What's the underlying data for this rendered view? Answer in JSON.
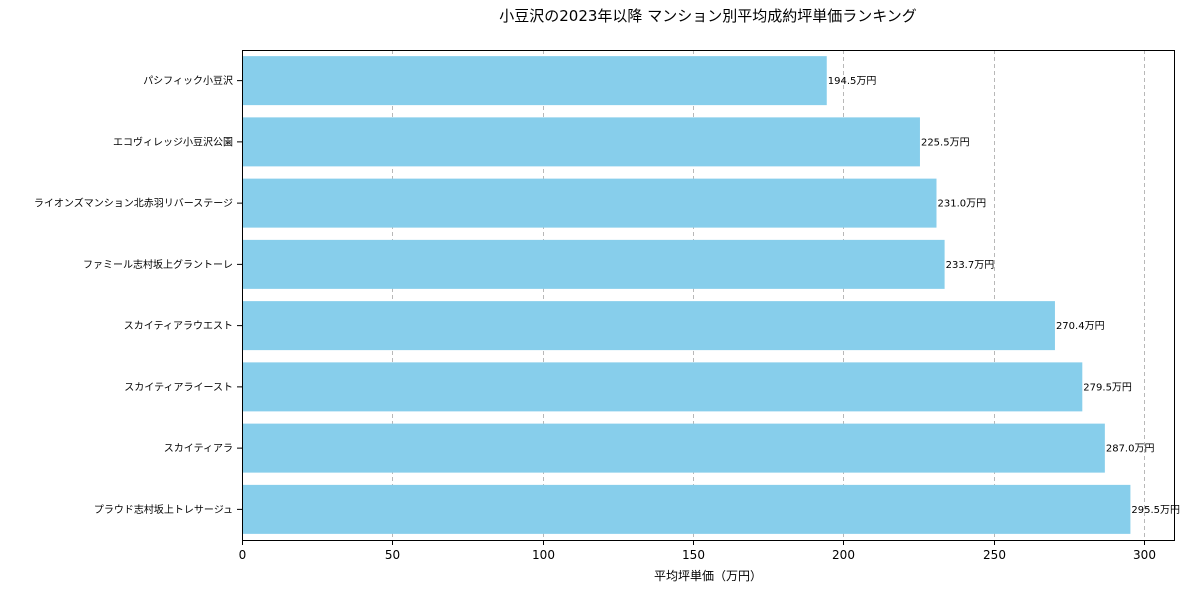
{
  "chart_data": {
    "type": "bar",
    "orientation": "horizontal",
    "title": "小豆沢の2023年以降 マンション別平均成約坪単価ランキング",
    "xlabel": "平均坪単価（万円）",
    "ylabel": "",
    "xlim": [
      0,
      310
    ],
    "xticks": [
      0,
      50,
      100,
      150,
      200,
      250,
      300
    ],
    "grid": "x-dashed",
    "bar_color": "#87CEEB",
    "value_suffix": "万円",
    "categories": [
      "パシフィック小豆沢",
      "エコヴィレッジ小豆沢公園",
      "ライオンズマンション北赤羽リバーステージ",
      "ファミール志村坂上グラントーレ",
      "スカイティアラウエスト",
      "スカイティアライースト",
      "スカイティアラ",
      "プラウド志村坂上トレサージュ"
    ],
    "values": [
      194.5,
      225.5,
      231.0,
      233.7,
      270.4,
      279.5,
      287.0,
      295.5
    ],
    "data_labels": [
      "194.5万円",
      "225.5万円",
      "231.0万円",
      "233.7万円",
      "270.4万円",
      "279.5万円",
      "287.0万円",
      "295.5万円"
    ]
  }
}
